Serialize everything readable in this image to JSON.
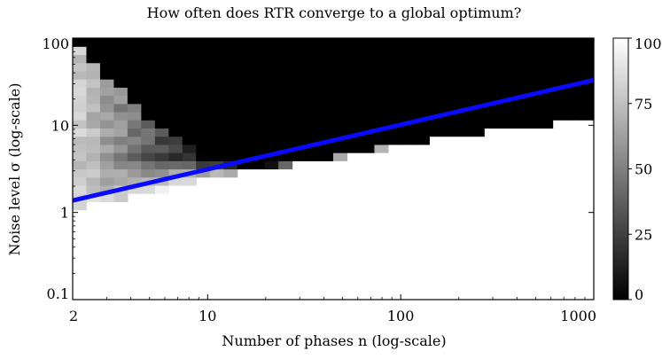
{
  "chart_data": {
    "type": "heatmap",
    "title": "How often does RTR converge to a global optimum?",
    "xlabel": "Number of phases n (log-scale)",
    "ylabel": "Noise level σ (log-scale)",
    "x_scale": "log",
    "y_scale": "log",
    "xlim": [
      2,
      1000
    ],
    "ylim": [
      0.1,
      100
    ],
    "xticks": [
      2,
      10,
      100,
      1000
    ],
    "xtick_labels": [
      "2",
      "10",
      "100",
      "1000"
    ],
    "yticks": [
      0.1,
      1,
      10,
      100
    ],
    "ytick_labels": [
      "0.1",
      "1",
      "10",
      "100"
    ],
    "colormap": "grayscale (black = 0, white = 100)",
    "colorbar": {
      "range": [
        0,
        100
      ],
      "ticks": [
        0,
        25,
        50,
        75,
        100
      ],
      "tick_labels": [
        "0",
        "25",
        "50",
        "75",
        "100"
      ]
    },
    "grid_n_range": [
      2,
      1000
    ],
    "grid_sigma_range": [
      0.1,
      100
    ],
    "grid_columns": 38,
    "grid_rows": 32,
    "transition_sigma_low": [
      [
        2,
        1.1
      ],
      [
        5,
        1.7
      ],
      [
        10,
        2.4
      ],
      [
        20,
        3.2
      ],
      [
        50,
        4.4
      ],
      [
        100,
        6.0
      ],
      [
        300,
        8.6
      ],
      [
        1000,
        11.5
      ]
    ],
    "transition_sigma_high": [
      [
        2,
        90
      ],
      [
        5,
        12
      ],
      [
        10,
        5.0
      ],
      [
        15,
        3.6
      ],
      [
        30,
        3.6
      ],
      [
        100,
        6.2
      ],
      [
        1000,
        11.8
      ]
    ],
    "regions": [
      "upper-left: mostly white/gray (frequent convergence)",
      "top-right: black (no convergence)",
      "below transition: white (always converges)"
    ],
    "bound_line": {
      "color": "#0a0aff",
      "x": [
        2,
        1000
      ],
      "y": [
        1.37,
        33
      ]
    }
  }
}
